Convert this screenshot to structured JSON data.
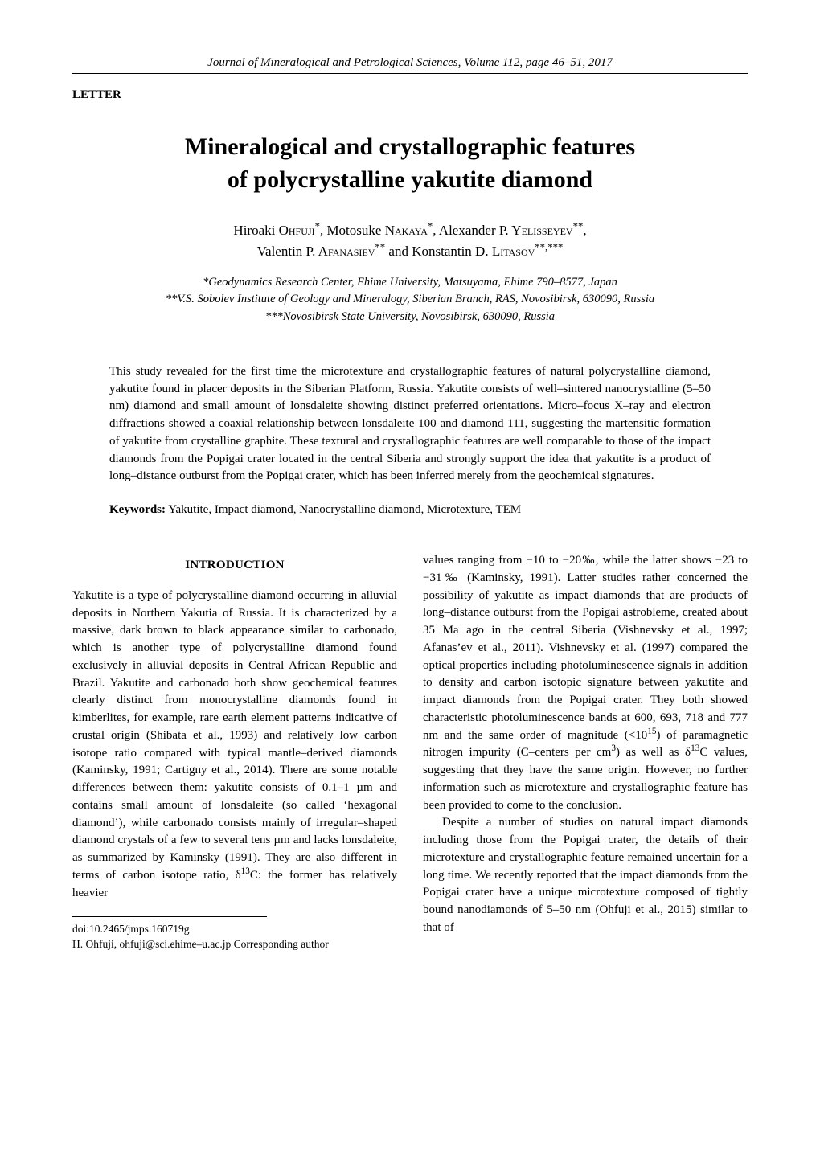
{
  "running_head": "Journal of Mineralogical and Petrological Sciences, Volume 112, page 46–51, 2017",
  "letter_label": "LETTER",
  "title_line1": "Mineralogical and crystallographic features",
  "title_line2": "of polycrystalline yakutite diamond",
  "authors_line1_html": "Hiroaki O<span class='surname'>hfuji</span><sup>*</sup>, Motosuke N<span class='surname'>akaya</span><sup>*</sup>, Alexander P. Y<span class='surname'>elisseyev</span><sup>**</sup>,",
  "authors_line2_html": "Valentin P. A<span class='surname'>fanasiev</span><sup>**</sup> and Konstantin D. L<span class='surname'>itasov</span><sup>**,***</sup>",
  "affil1": "*Geodynamics Research Center, Ehime University, Matsuyama, Ehime 790–8577, Japan",
  "affil2": "**V.S. Sobolev Institute of Geology and Mineralogy, Siberian Branch, RAS, Novosibirsk, 630090, Russia",
  "affil3": "***Novosibirsk State University, Novosibirsk, 630090, Russia",
  "abstract_text": "This study revealed for the first time the microtexture and crystallographic features of natural polycrystalline diamond, yakutite found in placer deposits in the Siberian Platform, Russia. Yakutite consists of well–sintered nanocrystalline (5–50 nm) diamond and small amount of lonsdaleite showing distinct preferred orientations. Micro–focus X–ray and electron diffractions showed a coaxial relationship between lonsdaleite 100 and diamond 111, suggesting the martensitic formation of yakutite from crystalline graphite. These textural and crystallographic features are well comparable to those of the impact diamonds from the Popigai crater located in the central Siberia and strongly support the idea that yakutite is a product of long–distance outburst from the Popigai crater, which has been inferred merely from the geochemical signatures.",
  "keywords_label": "Keywords:",
  "keywords_text": " Yakutite, Impact diamond, Nanocrystalline diamond, Microtexture, TEM",
  "intro_heading": "INTRODUCTION",
  "col1_para1_html": "Yakutite is a type of polycrystalline diamond occurring in alluvial deposits in Northern Yakutia of Russia. It is characterized by a massive, dark brown to black appearance similar to carbonado, which is another type of polycrystalline diamond found exclusively in alluvial deposits in Central African Republic and Brazil. Yakutite and carbonado both show geochemical features clearly distinct from monocrystalline diamonds found in kimberlites, for example, rare earth element patterns indicative of crustal origin (Shibata et al., 1993) and relatively low carbon isotope ratio compared with typical mantle–derived diamonds (Kaminsky, 1991; Cartigny et al., 2014). There are some notable differences between them: yakutite consists of 0.1–1 µm and contains small amount of lonsdaleite (so called ‘hexagonal diamond’), while carbonado consists mainly of irregular–shaped diamond crystals of a few to several tens µm and lacks lonsdaleite, as summarized by Kaminsky (1991). They are also different in terms of carbon isotope ratio, δ<sup>13</sup>C: the former has relatively heavier",
  "col2_para1_html": "values ranging from −10 to −20‰, while the latter shows −23 to −31‰ (Kaminsky, 1991). Latter studies rather concerned the possibility of yakutite as impact diamonds that are products of long–distance outburst from the Popigai astrobleme, created about 35 Ma ago in the central Siberia (Vishnevsky et al., 1997; Afanas’ev et al., 2011). Vishnevsky et al. (1997) compared the optical properties including photoluminescence signals in addition to density and carbon isotopic signature between yakutite and impact diamonds from the Popigai crater. They both showed characteristic photoluminescence bands at 600, 693, 718 and 777 nm and the same order of magnitude (&lt;10<sup>15</sup>) of paramagnetic nitrogen impurity (C–centers per cm<sup>3</sup>) as well as δ<sup>13</sup>C values, suggesting that they have the same origin. However, no further information such as microtexture and crystallographic feature has been provided to come to the conclusion.",
  "col2_para2_html": "Despite a number of studies on natural impact diamonds including those from the Popigai crater, the details of their microtexture and crystallographic feature remained uncertain for a long time. We recently reported that the impact diamonds from the Popigai crater have a unique microtexture composed of tightly bound nanodiamonds of 5–50 nm (Ohfuji et al., 2015) similar to that of",
  "footnote_doi": "doi:10.2465/jmps.160719g",
  "footnote_corr": "H. Ohfuji, ohfuji@sci.ehime–u.ac.jp Corresponding author"
}
